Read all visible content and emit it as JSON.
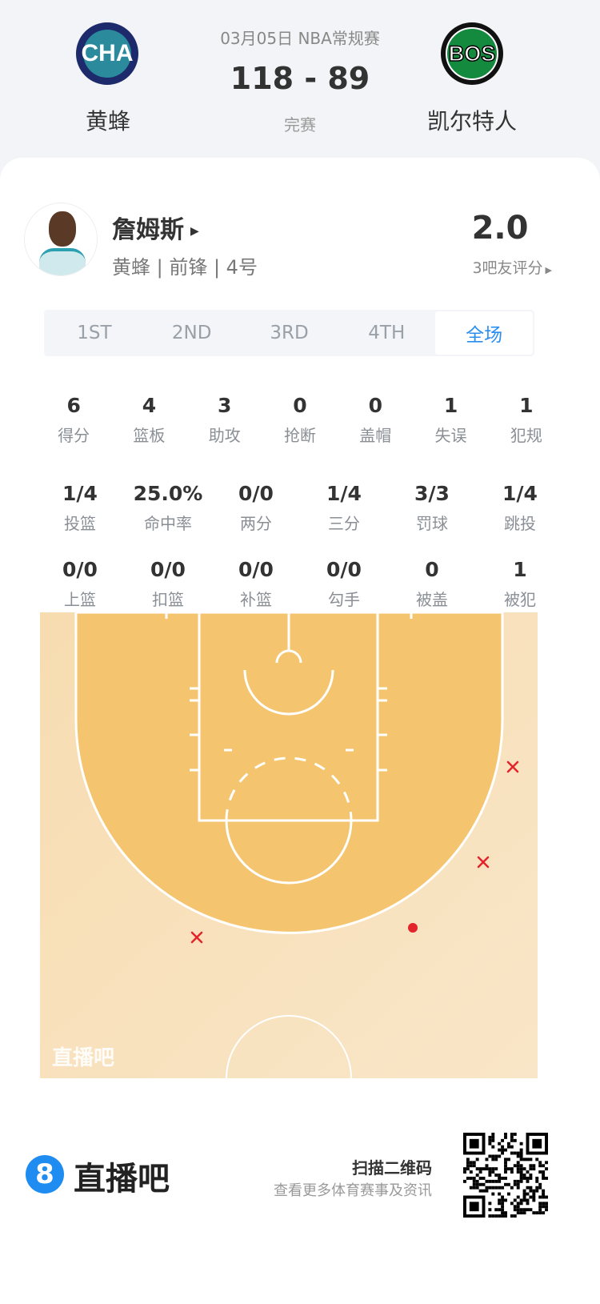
{
  "header": {
    "date_league": "03月05日 NBA常规赛",
    "score": "118 - 89",
    "status": "完赛",
    "home": {
      "abbr": "CHA",
      "name": "黄蜂",
      "color": "#1d1160",
      "accent": "#00788c"
    },
    "away": {
      "abbr": "BOS",
      "name": "凯尔特人",
      "color": "#007a33"
    }
  },
  "player": {
    "name": "詹姆斯",
    "info": "黄蜂 | 前锋 | 4号",
    "rating": "2.0",
    "rating_label": "3吧友评分"
  },
  "tabs": [
    {
      "label": "1ST"
    },
    {
      "label": "2ND"
    },
    {
      "label": "3RD"
    },
    {
      "label": "4TH"
    },
    {
      "label": "全场",
      "active": true
    }
  ],
  "stats": {
    "row1": [
      {
        "v": "6",
        "l": "得分"
      },
      {
        "v": "4",
        "l": "篮板"
      },
      {
        "v": "3",
        "l": "助攻"
      },
      {
        "v": "0",
        "l": "抢断"
      },
      {
        "v": "0",
        "l": "盖帽"
      },
      {
        "v": "1",
        "l": "失误"
      },
      {
        "v": "1",
        "l": "犯规"
      }
    ],
    "row2": [
      {
        "v": "1/4",
        "l": "投篮"
      },
      {
        "v": "25.0%",
        "l": "命中率"
      },
      {
        "v": "0/0",
        "l": "两分"
      },
      {
        "v": "1/4",
        "l": "三分"
      },
      {
        "v": "3/3",
        "l": "罚球"
      },
      {
        "v": "1/4",
        "l": "跳投"
      }
    ],
    "row3": [
      {
        "v": "0/0",
        "l": "上篮"
      },
      {
        "v": "0/0",
        "l": "扣篮"
      },
      {
        "v": "0/0",
        "l": "补篮"
      },
      {
        "v": "0/0",
        "l": "勾手"
      },
      {
        "v": "0",
        "l": "被盖"
      },
      {
        "v": "1",
        "l": "被犯"
      }
    ]
  },
  "shot_chart": {
    "watermark": "直播吧",
    "make_color": "#e3242b",
    "shots": [
      {
        "result": "miss"
      },
      {
        "result": "miss"
      },
      {
        "result": "miss"
      },
      {
        "result": "make"
      }
    ]
  },
  "footer": {
    "brand": "直播吧",
    "qr_title": "扫描二维码",
    "qr_subtitle": "查看更多体育赛事及资讯",
    "brand_color": "#1e8cf0"
  }
}
